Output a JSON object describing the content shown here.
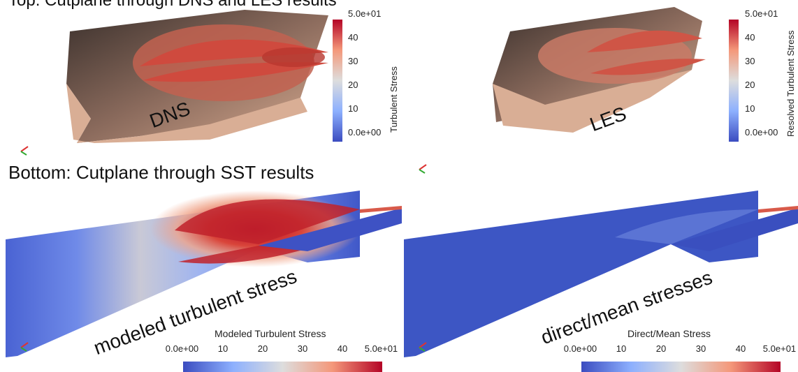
{
  "header": {
    "top_title_fragment": "Top: Cutplane through DNS and LES results",
    "bottom_title": "Bottom: Cutplane through SST results"
  },
  "panels": {
    "dns": {
      "label": "DNS"
    },
    "les": {
      "label": "LES"
    },
    "sst_modeled": {
      "label": "modeled turbulent stress"
    },
    "sst_direct": {
      "label": "direct/mean stresses"
    }
  },
  "colorbars": {
    "dns": {
      "title": "Turbulent Stress",
      "ticks": [
        "5.0e+01",
        "40",
        "30",
        "20",
        "10",
        "0.0e+00"
      ],
      "range": [
        0,
        50
      ]
    },
    "les": {
      "title": "Resolved Turbulent Stress",
      "ticks": [
        "5.0e+01",
        "40",
        "30",
        "20",
        "10",
        "0.0e+00"
      ],
      "range": [
        0,
        50
      ]
    },
    "sst_modeled": {
      "title": "Modeled Turbulent Stress",
      "ticks": [
        "0.0e+00",
        "10",
        "20",
        "30",
        "40",
        "5.0e+01"
      ],
      "range": [
        0,
        50
      ]
    },
    "sst_direct": {
      "title": "Direct/Mean Stress",
      "ticks": [
        "0.0e+00",
        "10",
        "20",
        "30",
        "40",
        "5.0e+01"
      ],
      "range": [
        0,
        50
      ]
    }
  },
  "colormap": {
    "low": "#3b4cc0",
    "mid": "#dddddd",
    "high": "#b40426"
  }
}
